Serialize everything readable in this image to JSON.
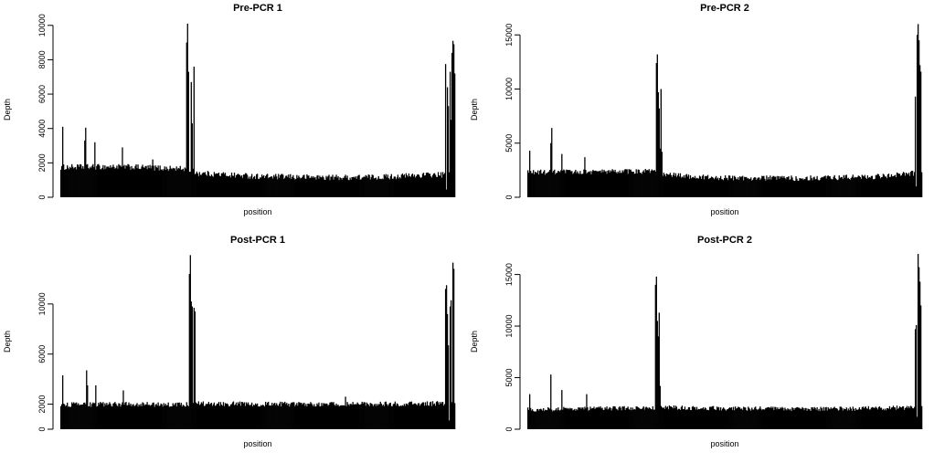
{
  "figure": {
    "chart_data": [
      {
        "type": "bar",
        "title": "Pre-PCR 1",
        "xlabel": "position",
        "ylabel": "Depth",
        "ylim": [
          0,
          10200
        ],
        "y_ticks": [
          0,
          2000,
          4000,
          6000,
          8000,
          10000
        ],
        "y_tick_labels": [
          "0",
          "2000",
          "4000",
          "6000",
          "8000",
          "10000"
        ],
        "x_ticks": [],
        "grid": false,
        "n_positions": 430,
        "baseline": [
          {
            "x": 0,
            "y": 1750
          },
          {
            "x": 65,
            "y": 1780
          },
          {
            "x": 135,
            "y": 1650
          },
          {
            "x": 150,
            "y": 1400
          },
          {
            "x": 220,
            "y": 1200
          },
          {
            "x": 310,
            "y": 1150
          },
          {
            "x": 350,
            "y": 1180
          },
          {
            "x": 400,
            "y": 1300
          },
          {
            "x": 430,
            "y": 1300
          }
        ],
        "noise": 170,
        "spikes": [
          {
            "x": 2,
            "y": 4100
          },
          {
            "x": 26,
            "y": 3300
          },
          {
            "x": 27,
            "y": 4050
          },
          {
            "x": 37,
            "y": 3200
          },
          {
            "x": 67,
            "y": 2900
          },
          {
            "x": 100,
            "y": 2200
          },
          {
            "x": 137,
            "y": 9000
          },
          {
            "x": 138,
            "y": 10100
          },
          {
            "x": 139,
            "y": 7300
          },
          {
            "x": 142,
            "y": 6700
          },
          {
            "x": 143,
            "y": 4300
          },
          {
            "x": 145,
            "y": 7600
          },
          {
            "x": 419,
            "y": 7750
          },
          {
            "x": 420,
            "y": 7850
          },
          {
            "x": 421,
            "y": 6400
          },
          {
            "x": 422,
            "y": 5300
          },
          {
            "x": 424,
            "y": 7300
          },
          {
            "x": 425,
            "y": 4500
          },
          {
            "x": 426,
            "y": 8400
          },
          {
            "x": 427,
            "y": 9100
          },
          {
            "x": 428,
            "y": 8900
          },
          {
            "x": 429,
            "y": 7200
          }
        ],
        "dips": [
          {
            "x": 420,
            "y": 450
          }
        ]
      },
      {
        "type": "bar",
        "title": "Pre-PCR 2",
        "xlabel": "position",
        "ylabel": "Depth",
        "ylim": [
          0,
          16200
        ],
        "y_ticks": [
          0,
          5000,
          10000,
          15000
        ],
        "y_tick_labels": [
          "0",
          "5000",
          "10000",
          "15000"
        ],
        "x_ticks": [],
        "grid": false,
        "n_positions": 430,
        "baseline": [
          {
            "x": 0,
            "y": 2300
          },
          {
            "x": 60,
            "y": 2350
          },
          {
            "x": 135,
            "y": 2400
          },
          {
            "x": 150,
            "y": 2100
          },
          {
            "x": 200,
            "y": 1800
          },
          {
            "x": 300,
            "y": 1750
          },
          {
            "x": 380,
            "y": 1900
          },
          {
            "x": 415,
            "y": 2200
          },
          {
            "x": 430,
            "y": 2200
          }
        ],
        "noise": 250,
        "spikes": [
          {
            "x": 2,
            "y": 4300
          },
          {
            "x": 25,
            "y": 5000
          },
          {
            "x": 26,
            "y": 6400
          },
          {
            "x": 37,
            "y": 4000
          },
          {
            "x": 62,
            "y": 3700
          },
          {
            "x": 140,
            "y": 12400
          },
          {
            "x": 141,
            "y": 13200
          },
          {
            "x": 142,
            "y": 9700
          },
          {
            "x": 143,
            "y": 8200
          },
          {
            "x": 144,
            "y": 4500
          },
          {
            "x": 145,
            "y": 10000
          },
          {
            "x": 146,
            "y": 4200
          },
          {
            "x": 422,
            "y": 9300
          },
          {
            "x": 424,
            "y": 15000
          },
          {
            "x": 425,
            "y": 16000
          },
          {
            "x": 426,
            "y": 14500
          },
          {
            "x": 427,
            "y": 12200
          },
          {
            "x": 428,
            "y": 11600
          }
        ],
        "dips": [
          {
            "x": 423,
            "y": 1000
          }
        ]
      },
      {
        "type": "bar",
        "title": "Post-PCR 1",
        "xlabel": "position",
        "ylabel": "Depth",
        "ylim": [
          0,
          14000
        ],
        "y_ticks": [
          0,
          2000,
          6000,
          10000
        ],
        "y_tick_labels": [
          "0",
          "2000",
          "6000",
          "10000"
        ],
        "x_ticks": [],
        "grid": false,
        "n_positions": 430,
        "baseline": [
          {
            "x": 0,
            "y": 1950
          },
          {
            "x": 70,
            "y": 2000
          },
          {
            "x": 135,
            "y": 1950
          },
          {
            "x": 150,
            "y": 2050
          },
          {
            "x": 230,
            "y": 2000
          },
          {
            "x": 330,
            "y": 2000
          },
          {
            "x": 420,
            "y": 2050
          },
          {
            "x": 430,
            "y": 2050
          }
        ],
        "noise": 200,
        "spikes": [
          {
            "x": 2,
            "y": 4300
          },
          {
            "x": 28,
            "y": 4700
          },
          {
            "x": 29,
            "y": 3500
          },
          {
            "x": 38,
            "y": 3500
          },
          {
            "x": 68,
            "y": 3100
          },
          {
            "x": 140,
            "y": 12400
          },
          {
            "x": 141,
            "y": 13900
          },
          {
            "x": 142,
            "y": 10200
          },
          {
            "x": 143,
            "y": 9800
          },
          {
            "x": 145,
            "y": 9700
          },
          {
            "x": 146,
            "y": 9400
          },
          {
            "x": 310,
            "y": 2600
          },
          {
            "x": 419,
            "y": 11200
          },
          {
            "x": 420,
            "y": 11500
          },
          {
            "x": 421,
            "y": 9200
          },
          {
            "x": 422,
            "y": 6700
          },
          {
            "x": 424,
            "y": 9800
          },
          {
            "x": 425,
            "y": 10300
          },
          {
            "x": 427,
            "y": 13300
          },
          {
            "x": 428,
            "y": 12800
          }
        ],
        "dips": [
          {
            "x": 423,
            "y": 700
          }
        ]
      },
      {
        "type": "bar",
        "title": "Post-PCR 2",
        "xlabel": "position",
        "ylabel": "Depth",
        "ylim": [
          0,
          17000
        ],
        "y_ticks": [
          0,
          5000,
          10000,
          15000
        ],
        "y_tick_labels": [
          "0",
          "5000",
          "10000",
          "15000"
        ],
        "x_ticks": [],
        "grid": false,
        "n_positions": 430,
        "baseline": [
          {
            "x": 0,
            "y": 1900
          },
          {
            "x": 60,
            "y": 2000
          },
          {
            "x": 135,
            "y": 2050
          },
          {
            "x": 150,
            "y": 2100
          },
          {
            "x": 230,
            "y": 2000
          },
          {
            "x": 330,
            "y": 1950
          },
          {
            "x": 420,
            "y": 2100
          },
          {
            "x": 430,
            "y": 2100
          }
        ],
        "noise": 220,
        "spikes": [
          {
            "x": 2,
            "y": 3400
          },
          {
            "x": 25,
            "y": 5300
          },
          {
            "x": 37,
            "y": 3800
          },
          {
            "x": 64,
            "y": 3400
          },
          {
            "x": 139,
            "y": 14000
          },
          {
            "x": 140,
            "y": 14800
          },
          {
            "x": 141,
            "y": 10500
          },
          {
            "x": 142,
            "y": 9000
          },
          {
            "x": 143,
            "y": 11300
          },
          {
            "x": 144,
            "y": 4200
          },
          {
            "x": 422,
            "y": 9700
          },
          {
            "x": 423,
            "y": 10100
          },
          {
            "x": 425,
            "y": 17000
          },
          {
            "x": 426,
            "y": 15700
          },
          {
            "x": 427,
            "y": 14300
          },
          {
            "x": 428,
            "y": 12000
          }
        ],
        "dips": [
          {
            "x": 424,
            "y": 1200
          }
        ]
      }
    ]
  }
}
